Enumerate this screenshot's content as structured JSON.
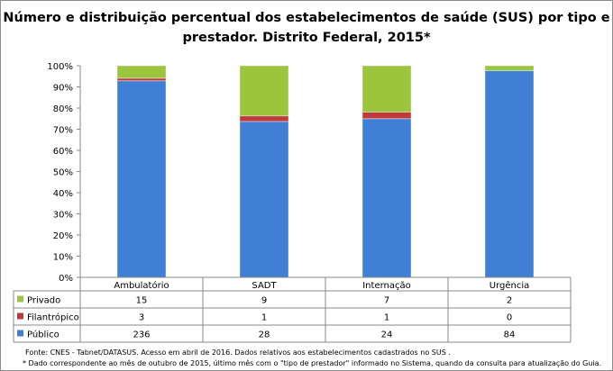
{
  "chart_data": {
    "type": "bar",
    "stacked": "percent",
    "title_line1": "Número e distribuição percentual dos estabelecimentos de saúde (SUS) por tipo e",
    "title_line2": "prestador. Distrito Federal, 2015*",
    "categories": [
      "Ambulatório",
      "SADT",
      "Internação",
      "Urgência"
    ],
    "series": [
      {
        "name": "Público",
        "values": [
          236,
          28,
          24,
          84
        ],
        "color": "#3f7fd4"
      },
      {
        "name": "Filantrópico",
        "values": [
          3,
          1,
          1,
          0
        ],
        "color": "#c0393b"
      },
      {
        "name": "Privado",
        "values": [
          15,
          9,
          7,
          2
        ],
        "color": "#9bc53d"
      }
    ],
    "table_order": [
      "Privado",
      "Filantrópico",
      "Público"
    ],
    "yticks": [
      "0%",
      "10%",
      "20%",
      "30%",
      "40%",
      "50%",
      "60%",
      "70%",
      "80%",
      "90%",
      "100%"
    ],
    "ylim": [
      0,
      100
    ],
    "legend": "data-table"
  },
  "footer": {
    "source": "Fonte: CNES - Tabnet/DATASUS. Acesso em abril de 2016.  Dados relativos aos estabelecimentos cadastrados no SUS .",
    "note": "* Dado correspondente ao mês de  outubro de 2015, último mês com o \"tipo de prestador\" informado no Sistema, quando da consulta para atualização do Guia."
  }
}
